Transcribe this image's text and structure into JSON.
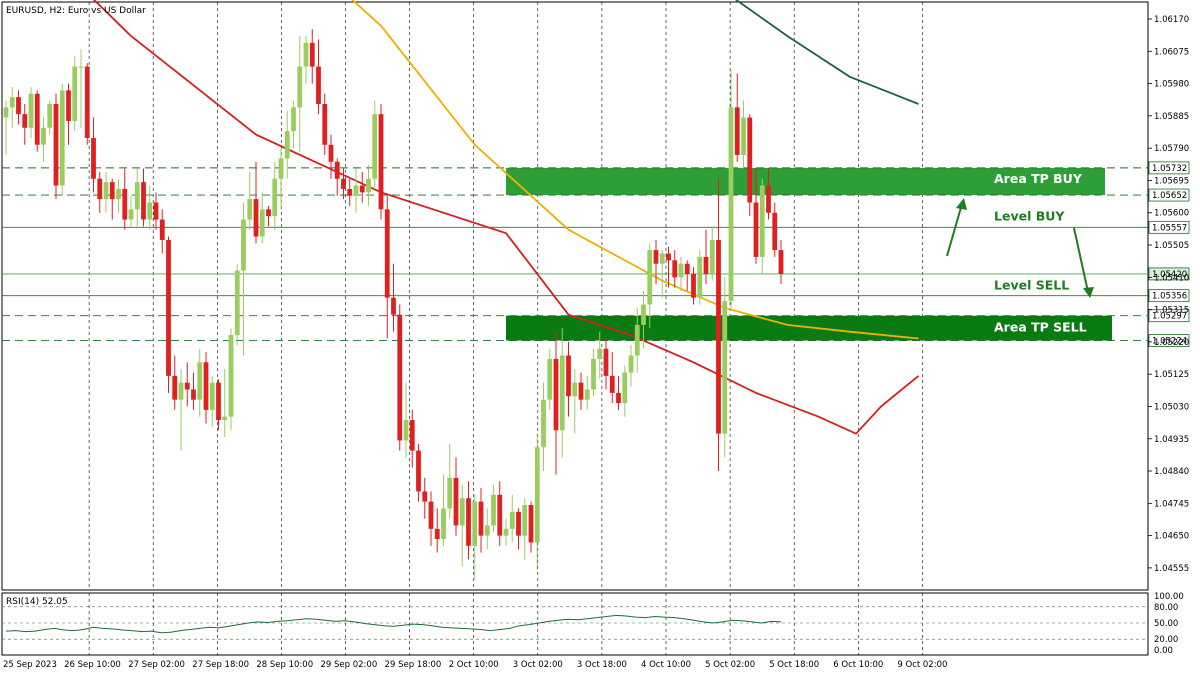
{
  "header": {
    "symbol_label": "EURUSD, H2:  Euro vs US Dollar"
  },
  "rsi_label": "RSI(14) 52.05",
  "rsi_axis_labels": [
    "100.00",
    "80.00",
    "50.00",
    "20.00",
    "0.00"
  ],
  "price_axis_labels": [
    "1.06170",
    "1.06075",
    "1.05980",
    "1.05885",
    "1.05790",
    "1.05695",
    "1.05600",
    "1.05505",
    "1.05410",
    "1.05315",
    "1.05220",
    "1.05125",
    "1.05030",
    "1.04935",
    "1.04840",
    "1.04745",
    "1.04650",
    "1.04555"
  ],
  "time_labels": [
    "25 Sep 2023",
    "26 Sep 10:00",
    "27 Sep 02:00",
    "27 Sep 18:00",
    "28 Sep 10:00",
    "29 Sep 02:00",
    "29 Sep 18:00",
    "2 Oct 10:00",
    "3 Oct 02:00",
    "3 Oct 18:00",
    "4 Oct 10:00",
    "5 Oct 02:00",
    "5 Oct 18:00",
    "6 Oct 10:00",
    "9 Oct 02:00"
  ],
  "levels": {
    "area_tp_buy_top": "1.05732",
    "area_tp_buy_bottom": "1.05652",
    "level_buy": "1.05557",
    "current_price": "1.05420",
    "level_sell": "1.05356",
    "area_tp_sell_top": "1.05297",
    "area_tp_sell_bottom": "1.05224"
  },
  "annotations": {
    "area_tp_buy": "Area TP BUY",
    "level_buy": "Level BUY",
    "level_sell": "Level SELL",
    "area_tp_sell": "Area TP SELL"
  },
  "colors": {
    "bull_candle": "#9acd60",
    "bear_candle": "#e02020",
    "zone_buy": "#2e9e38",
    "zone_sell": "#0a7a12",
    "level_line": "#1e7d1e",
    "ma_red": "#d42020",
    "ma_orange": "#f0b000",
    "ma_teal": "#1e5e50",
    "rsi_line": "#1e6e3a",
    "price_tag_bg": "#ffffff"
  },
  "chart_data": {
    "type": "candlestick",
    "symbol": "EURUSD",
    "timeframe": "H2",
    "ylim": [
      1.0449,
      1.0622
    ],
    "rsi": {
      "period": 14,
      "last": 52.05,
      "levels": [
        80,
        50,
        20
      ],
      "ylim": [
        0,
        100
      ]
    },
    "candles": [
      {
        "o": 1.0588,
        "h": 1.0593,
        "l": 1.0577,
        "c": 1.0591
      },
      {
        "o": 1.0591,
        "h": 1.0597,
        "l": 1.0585,
        "c": 1.0594
      },
      {
        "o": 1.0594,
        "h": 1.0596,
        "l": 1.0586,
        "c": 1.0589
      },
      {
        "o": 1.0589,
        "h": 1.0592,
        "l": 1.058,
        "c": 1.0585
      },
      {
        "o": 1.0585,
        "h": 1.0597,
        "l": 1.0582,
        "c": 1.0595
      },
      {
        "o": 1.0595,
        "h": 1.0596,
        "l": 1.0578,
        "c": 1.058
      },
      {
        "o": 1.058,
        "h": 1.0588,
        "l": 1.0575,
        "c": 1.0585
      },
      {
        "o": 1.0585,
        "h": 1.0593,
        "l": 1.0583,
        "c": 1.0592
      },
      {
        "o": 1.0592,
        "h": 1.0595,
        "l": 1.0564,
        "c": 1.0568
      },
      {
        "o": 1.0568,
        "h": 1.0598,
        "l": 1.0565,
        "c": 1.0596
      },
      {
        "o": 1.0596,
        "h": 1.0598,
        "l": 1.058,
        "c": 1.0587
      },
      {
        "o": 1.0587,
        "h": 1.0606,
        "l": 1.0584,
        "c": 1.0603
      },
      {
        "o": 1.0603,
        "h": 1.0608,
        "l": 1.0585,
        "c": 1.0603
      },
      {
        "o": 1.0603,
        "h": 1.0604,
        "l": 1.058,
        "c": 1.0582
      },
      {
        "o": 1.0582,
        "h": 1.0588,
        "l": 1.0566,
        "c": 1.057
      },
      {
        "o": 1.057,
        "h": 1.0572,
        "l": 1.056,
        "c": 1.0564
      },
      {
        "o": 1.0564,
        "h": 1.0572,
        "l": 1.056,
        "c": 1.0569
      },
      {
        "o": 1.0569,
        "h": 1.057,
        "l": 1.0558,
        "c": 1.0564
      },
      {
        "o": 1.0564,
        "h": 1.057,
        "l": 1.056,
        "c": 1.0567
      },
      {
        "o": 1.0567,
        "h": 1.0573,
        "l": 1.0555,
        "c": 1.0558
      },
      {
        "o": 1.0558,
        "h": 1.0565,
        "l": 1.0556,
        "c": 1.0561
      },
      {
        "o": 1.0561,
        "h": 1.0573,
        "l": 1.0556,
        "c": 1.0569
      },
      {
        "o": 1.0569,
        "h": 1.0573,
        "l": 1.0556,
        "c": 1.0558
      },
      {
        "o": 1.0558,
        "h": 1.0568,
        "l": 1.0555,
        "c": 1.0563
      },
      {
        "o": 1.0563,
        "h": 1.0566,
        "l": 1.0555,
        "c": 1.0558
      },
      {
        "o": 1.0558,
        "h": 1.0561,
        "l": 1.0548,
        "c": 1.0552
      },
      {
        "o": 1.0552,
        "h": 1.0553,
        "l": 1.0507,
        "c": 1.0512
      },
      {
        "o": 1.0512,
        "h": 1.0518,
        "l": 1.0502,
        "c": 1.0505
      },
      {
        "o": 1.0505,
        "h": 1.0514,
        "l": 1.049,
        "c": 1.051
      },
      {
        "o": 1.051,
        "h": 1.0516,
        "l": 1.0503,
        "c": 1.0508
      },
      {
        "o": 1.0508,
        "h": 1.0513,
        "l": 1.0502,
        "c": 1.0505
      },
      {
        "o": 1.0505,
        "h": 1.052,
        "l": 1.05,
        "c": 1.0516
      },
      {
        "o": 1.0516,
        "h": 1.0519,
        "l": 1.0498,
        "c": 1.0502
      },
      {
        "o": 1.0502,
        "h": 1.0512,
        "l": 1.0497,
        "c": 1.051
      },
      {
        "o": 1.051,
        "h": 1.0511,
        "l": 1.0496,
        "c": 1.0499
      },
      {
        "o": 1.0499,
        "h": 1.0514,
        "l": 1.0494,
        "c": 1.05
      },
      {
        "o": 1.05,
        "h": 1.0526,
        "l": 1.0496,
        "c": 1.0524
      },
      {
        "o": 1.0524,
        "h": 1.0545,
        "l": 1.0521,
        "c": 1.0543
      },
      {
        "o": 1.0543,
        "h": 1.0563,
        "l": 1.0518,
        "c": 1.0558
      },
      {
        "o": 1.0558,
        "h": 1.0572,
        "l": 1.0555,
        "c": 1.0564
      },
      {
        "o": 1.0564,
        "h": 1.0575,
        "l": 1.0551,
        "c": 1.0553
      },
      {
        "o": 1.0553,
        "h": 1.0566,
        "l": 1.0551,
        "c": 1.0561
      },
      {
        "o": 1.0561,
        "h": 1.0562,
        "l": 1.0556,
        "c": 1.0559
      },
      {
        "o": 1.0559,
        "h": 1.0575,
        "l": 1.0555,
        "c": 1.057
      },
      {
        "o": 1.057,
        "h": 1.0579,
        "l": 1.0561,
        "c": 1.0576
      },
      {
        "o": 1.0576,
        "h": 1.059,
        "l": 1.057,
        "c": 1.0584
      },
      {
        "o": 1.0584,
        "h": 1.0593,
        "l": 1.0579,
        "c": 1.0591
      },
      {
        "o": 1.0591,
        "h": 1.0612,
        "l": 1.0578,
        "c": 1.0603
      },
      {
        "o": 1.0603,
        "h": 1.0612,
        "l": 1.0598,
        "c": 1.061
      },
      {
        "o": 1.061,
        "h": 1.0614,
        "l": 1.0598,
        "c": 1.0603
      },
      {
        "o": 1.0603,
        "h": 1.0611,
        "l": 1.0589,
        "c": 1.0592
      },
      {
        "o": 1.0592,
        "h": 1.0595,
        "l": 1.0577,
        "c": 1.058
      },
      {
        "o": 1.058,
        "h": 1.0583,
        "l": 1.057,
        "c": 1.0575
      },
      {
        "o": 1.0575,
        "h": 1.0576,
        "l": 1.0565,
        "c": 1.057
      },
      {
        "o": 1.057,
        "h": 1.0573,
        "l": 1.0564,
        "c": 1.0567
      },
      {
        "o": 1.0567,
        "h": 1.057,
        "l": 1.0562,
        "c": 1.0565
      },
      {
        "o": 1.0565,
        "h": 1.0573,
        "l": 1.056,
        "c": 1.0568
      },
      {
        "o": 1.0568,
        "h": 1.0572,
        "l": 1.0563,
        "c": 1.0566
      },
      {
        "o": 1.0566,
        "h": 1.0574,
        "l": 1.0562,
        "c": 1.057
      },
      {
        "o": 1.057,
        "h": 1.0593,
        "l": 1.0567,
        "c": 1.0589
      },
      {
        "o": 1.0589,
        "h": 1.0592,
        "l": 1.0558,
        "c": 1.0561
      },
      {
        "o": 1.0561,
        "h": 1.0565,
        "l": 1.0523,
        "c": 1.0535
      },
      {
        "o": 1.0535,
        "h": 1.0545,
        "l": 1.0525,
        "c": 1.053
      },
      {
        "o": 1.053,
        "h": 1.0533,
        "l": 1.049,
        "c": 1.0493
      },
      {
        "o": 1.0493,
        "h": 1.051,
        "l": 1.0488,
        "c": 1.0499
      },
      {
        "o": 1.0499,
        "h": 1.0502,
        "l": 1.0485,
        "c": 1.049
      },
      {
        "o": 1.049,
        "h": 1.0492,
        "l": 1.0475,
        "c": 1.0478
      },
      {
        "o": 1.0478,
        "h": 1.0482,
        "l": 1.047,
        "c": 1.0475
      },
      {
        "o": 1.0475,
        "h": 1.0478,
        "l": 1.0462,
        "c": 1.0467
      },
      {
        "o": 1.0467,
        "h": 1.0473,
        "l": 1.046,
        "c": 1.0464
      },
      {
        "o": 1.0464,
        "h": 1.0483,
        "l": 1.0462,
        "c": 1.0473
      },
      {
        "o": 1.0473,
        "h": 1.0492,
        "l": 1.047,
        "c": 1.0482
      },
      {
        "o": 1.0482,
        "h": 1.0488,
        "l": 1.0465,
        "c": 1.0468
      },
      {
        "o": 1.0468,
        "h": 1.048,
        "l": 1.0456,
        "c": 1.0476
      },
      {
        "o": 1.0476,
        "h": 1.0481,
        "l": 1.0458,
        "c": 1.0462
      },
      {
        "o": 1.0462,
        "h": 1.0477,
        "l": 1.0452,
        "c": 1.0475
      },
      {
        "o": 1.0475,
        "h": 1.0479,
        "l": 1.046,
        "c": 1.0465
      },
      {
        "o": 1.0465,
        "h": 1.0473,
        "l": 1.0461,
        "c": 1.0468
      },
      {
        "o": 1.0468,
        "h": 1.048,
        "l": 1.0466,
        "c": 1.0477
      },
      {
        "o": 1.0477,
        "h": 1.0481,
        "l": 1.0462,
        "c": 1.0465
      },
      {
        "o": 1.0465,
        "h": 1.047,
        "l": 1.0462,
        "c": 1.0467
      },
      {
        "o": 1.0467,
        "h": 1.0477,
        "l": 1.0463,
        "c": 1.0472
      },
      {
        "o": 1.0472,
        "h": 1.0473,
        "l": 1.0461,
        "c": 1.0465
      },
      {
        "o": 1.0465,
        "h": 1.0476,
        "l": 1.0458,
        "c": 1.0474
      },
      {
        "o": 1.0474,
        "h": 1.0475,
        "l": 1.046,
        "c": 1.0463
      },
      {
        "o": 1.0463,
        "h": 1.0495,
        "l": 1.0455,
        "c": 1.0491
      },
      {
        "o": 1.0491,
        "h": 1.051,
        "l": 1.0484,
        "c": 1.0505
      },
      {
        "o": 1.0505,
        "h": 1.052,
        "l": 1.0502,
        "c": 1.0517
      },
      {
        "o": 1.0517,
        "h": 1.0525,
        "l": 1.0483,
        "c": 1.0496
      },
      {
        "o": 1.0496,
        "h": 1.0526,
        "l": 1.0488,
        "c": 1.0518
      },
      {
        "o": 1.0518,
        "h": 1.0522,
        "l": 1.05,
        "c": 1.0506
      },
      {
        "o": 1.0506,
        "h": 1.0514,
        "l": 1.0495,
        "c": 1.051
      },
      {
        "o": 1.051,
        "h": 1.0513,
        "l": 1.0502,
        "c": 1.0505
      },
      {
        "o": 1.0505,
        "h": 1.0512,
        "l": 1.0502,
        "c": 1.0508
      },
      {
        "o": 1.0508,
        "h": 1.052,
        "l": 1.0506,
        "c": 1.0517
      },
      {
        "o": 1.0517,
        "h": 1.0525,
        "l": 1.0511,
        "c": 1.052
      },
      {
        "o": 1.052,
        "h": 1.0523,
        "l": 1.0508,
        "c": 1.0512
      },
      {
        "o": 1.0512,
        "h": 1.0519,
        "l": 1.0504,
        "c": 1.0507
      },
      {
        "o": 1.0507,
        "h": 1.0512,
        "l": 1.0502,
        "c": 1.0504
      },
      {
        "o": 1.0504,
        "h": 1.0515,
        "l": 1.05,
        "c": 1.0513
      },
      {
        "o": 1.0513,
        "h": 1.0521,
        "l": 1.0509,
        "c": 1.0518
      },
      {
        "o": 1.0518,
        "h": 1.0532,
        "l": 1.0513,
        "c": 1.0527
      },
      {
        "o": 1.0527,
        "h": 1.0537,
        "l": 1.052,
        "c": 1.0533
      },
      {
        "o": 1.0533,
        "h": 1.0551,
        "l": 1.0526,
        "c": 1.0549
      },
      {
        "o": 1.0549,
        "h": 1.0552,
        "l": 1.0539,
        "c": 1.0545
      },
      {
        "o": 1.0545,
        "h": 1.0549,
        "l": 1.0535,
        "c": 1.0548
      },
      {
        "o": 1.0548,
        "h": 1.055,
        "l": 1.0538,
        "c": 1.0546
      },
      {
        "o": 1.0546,
        "h": 1.0549,
        "l": 1.0538,
        "c": 1.0541
      },
      {
        "o": 1.0541,
        "h": 1.0547,
        "l": 1.0537,
        "c": 1.0545
      },
      {
        "o": 1.0545,
        "h": 1.0546,
        "l": 1.0537,
        "c": 1.0542
      },
      {
        "o": 1.0542,
        "h": 1.0544,
        "l": 1.0533,
        "c": 1.0535
      },
      {
        "o": 1.0535,
        "h": 1.0549,
        "l": 1.0533,
        "c": 1.0547
      },
      {
        "o": 1.0547,
        "h": 1.0555,
        "l": 1.0539,
        "c": 1.0542
      },
      {
        "o": 1.0542,
        "h": 1.0556,
        "l": 1.054,
        "c": 1.0552
      },
      {
        "o": 1.0552,
        "h": 1.057,
        "l": 1.0484,
        "c": 1.0495
      },
      {
        "o": 1.0495,
        "h": 1.0541,
        "l": 1.0488,
        "c": 1.0534
      },
      {
        "o": 1.0534,
        "h": 1.0602,
        "l": 1.0532,
        "c": 1.0591
      },
      {
        "o": 1.0591,
        "h": 1.0601,
        "l": 1.0575,
        "c": 1.0577
      },
      {
        "o": 1.0577,
        "h": 1.0593,
        "l": 1.0573,
        "c": 1.0588
      },
      {
        "o": 1.0588,
        "h": 1.0589,
        "l": 1.0559,
        "c": 1.0563
      },
      {
        "o": 1.0563,
        "h": 1.0573,
        "l": 1.0545,
        "c": 1.0547
      },
      {
        "o": 1.0547,
        "h": 1.057,
        "l": 1.0542,
        "c": 1.0568
      },
      {
        "o": 1.0568,
        "h": 1.0573,
        "l": 1.0558,
        "c": 1.056
      },
      {
        "o": 1.056,
        "h": 1.0563,
        "l": 1.0547,
        "c": 1.0549
      },
      {
        "o": 1.0549,
        "h": 1.0552,
        "l": 1.0539,
        "c": 1.0542
      }
    ],
    "moving_averages": [
      {
        "color_key": "ma_red",
        "points": [
          [
            0,
            1.0648
          ],
          [
            20,
            1.0612
          ],
          [
            40,
            1.0583
          ],
          [
            60,
            1.0566
          ],
          [
            80,
            1.0554
          ],
          [
            90,
            1.053
          ],
          [
            100,
            1.0524
          ],
          [
            110,
            1.0516
          ],
          [
            120,
            1.0507
          ],
          [
            130,
            1.05
          ],
          [
            136,
            1.0495
          ],
          [
            140,
            1.0503
          ],
          [
            146,
            1.0512
          ]
        ]
      },
      {
        "color_key": "ma_orange",
        "points": [
          [
            45,
            1.064
          ],
          [
            60,
            1.0615
          ],
          [
            75,
            1.058
          ],
          [
            90,
            1.0555
          ],
          [
            105,
            1.054
          ],
          [
            115,
            1.0532
          ],
          [
            125,
            1.0527
          ],
          [
            135,
            1.0525
          ],
          [
            146,
            1.0523
          ]
        ]
      },
      {
        "color_key": "ma_teal",
        "points": [
          [
            100,
            1.064
          ],
          [
            115,
            1.0625
          ],
          [
            125,
            1.0612
          ],
          [
            135,
            1.06
          ],
          [
            146,
            1.0592
          ]
        ]
      }
    ],
    "rsi_values": [
      35,
      36,
      34,
      35,
      38,
      40,
      37,
      36,
      38,
      42,
      40,
      39,
      37,
      36,
      34,
      35,
      32,
      33,
      36,
      38,
      40,
      42,
      41,
      44,
      47,
      50,
      52,
      51,
      53,
      54,
      56,
      58,
      57,
      55,
      53,
      54,
      52,
      49,
      47,
      45,
      44,
      46,
      48,
      47,
      45,
      42,
      41,
      40,
      39,
      38,
      36,
      38,
      40,
      45,
      47,
      50,
      53,
      55,
      57,
      56,
      58,
      60,
      62,
      64,
      63,
      61,
      60,
      62,
      61,
      60,
      58,
      55,
      52,
      50,
      52,
      55,
      54,
      52,
      50,
      53,
      52
    ]
  }
}
